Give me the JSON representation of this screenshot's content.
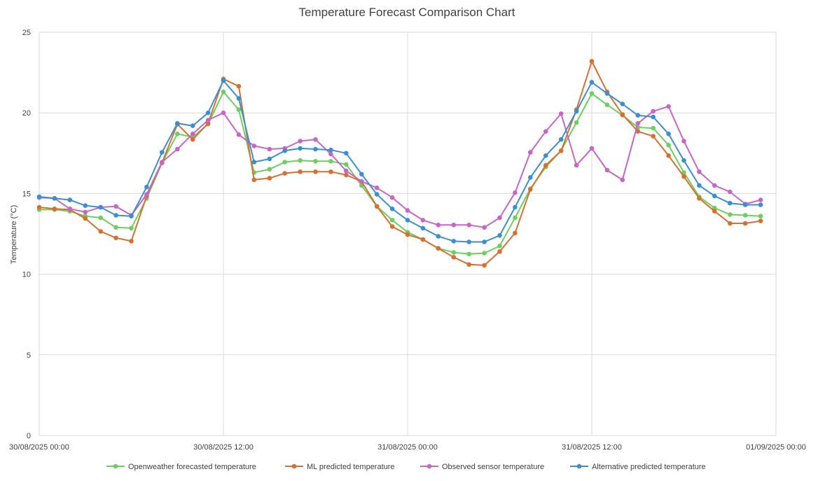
{
  "chart_data": {
    "type": "line",
    "title": "Temperature Forecast Comparison Chart",
    "xlabel": "",
    "ylabel": "Temperature (°C)",
    "ylim": [
      0,
      25
    ],
    "yticks": [
      "0",
      "5",
      "10",
      "15",
      "20",
      "25"
    ],
    "xlim": [
      "30/08/2025 00:00",
      "01/09/2025 00:00"
    ],
    "xticks": [
      "30/08/2025 00:00",
      "30/08/2025 12:00",
      "31/08/2025 00:00",
      "31/08/2025 12:00",
      "01/09/2025 00:00"
    ],
    "x_step_hours": 1,
    "grid": true,
    "legend": "bottom",
    "series": [
      {
        "name": "Openweather forecasted temperature",
        "color": "#6ccf5f",
        "values": [
          14.0,
          14.0,
          13.9,
          13.6,
          13.5,
          12.9,
          12.85,
          14.7,
          16.9,
          18.7,
          18.5,
          19.3,
          21.3,
          20.2,
          16.3,
          16.5,
          16.95,
          17.05,
          17.0,
          17.0,
          16.8,
          15.5,
          14.2,
          13.35,
          12.6,
          12.15,
          11.6,
          11.35,
          11.25,
          11.3,
          11.75,
          13.5,
          15.3,
          16.65,
          17.65,
          19.4,
          21.2,
          20.5,
          19.85,
          19.1,
          19.05,
          18.0,
          16.3,
          14.8,
          14.1,
          13.7,
          13.65,
          13.6
        ]
      },
      {
        "name": "ML predicted temperature",
        "color": "#d86f2f",
        "values": [
          14.15,
          14.05,
          14.0,
          13.45,
          12.65,
          12.25,
          12.05,
          14.85,
          16.9,
          19.3,
          18.35,
          19.35,
          22.1,
          21.65,
          15.85,
          15.95,
          16.25,
          16.35,
          16.35,
          16.35,
          16.15,
          15.75,
          14.2,
          12.95,
          12.45,
          12.15,
          11.6,
          11.05,
          10.6,
          10.55,
          11.4,
          12.55,
          15.25,
          16.75,
          17.65,
          20.2,
          23.2,
          21.3,
          19.9,
          18.85,
          18.55,
          17.35,
          16.05,
          14.7,
          13.9,
          13.15,
          13.15,
          13.3
        ]
      },
      {
        "name": "Observed sensor temperature",
        "color": "#c766c8",
        "values": [
          14.75,
          14.7,
          14.05,
          13.85,
          14.15,
          14.2,
          13.65,
          14.95,
          16.95,
          17.75,
          18.7,
          19.55,
          20.0,
          18.65,
          17.95,
          17.75,
          17.8,
          18.25,
          18.35,
          17.45,
          16.4,
          15.75,
          15.35,
          14.75,
          13.95,
          13.35,
          13.05,
          13.05,
          13.05,
          12.9,
          13.5,
          15.05,
          17.55,
          18.85,
          19.95,
          16.75,
          17.8,
          16.45,
          15.85,
          19.35,
          20.1,
          20.4,
          18.25,
          16.35,
          15.5,
          15.1,
          14.35,
          14.6
        ]
      },
      {
        "name": "Alternative predicted temperature",
        "color": "#3a8fd2",
        "values": [
          14.8,
          14.7,
          14.6,
          14.25,
          14.15,
          13.65,
          13.6,
          15.4,
          17.55,
          19.35,
          19.2,
          20.0,
          22.0,
          20.9,
          16.95,
          17.15,
          17.65,
          17.8,
          17.75,
          17.7,
          17.5,
          16.2,
          14.95,
          14.05,
          13.35,
          12.85,
          12.35,
          12.05,
          12.0,
          12.0,
          12.4,
          14.15,
          16.0,
          17.35,
          18.35,
          20.1,
          21.9,
          21.2,
          20.55,
          19.85,
          19.75,
          18.7,
          17.05,
          15.5,
          14.85,
          14.4,
          14.3,
          14.3
        ]
      }
    ]
  }
}
